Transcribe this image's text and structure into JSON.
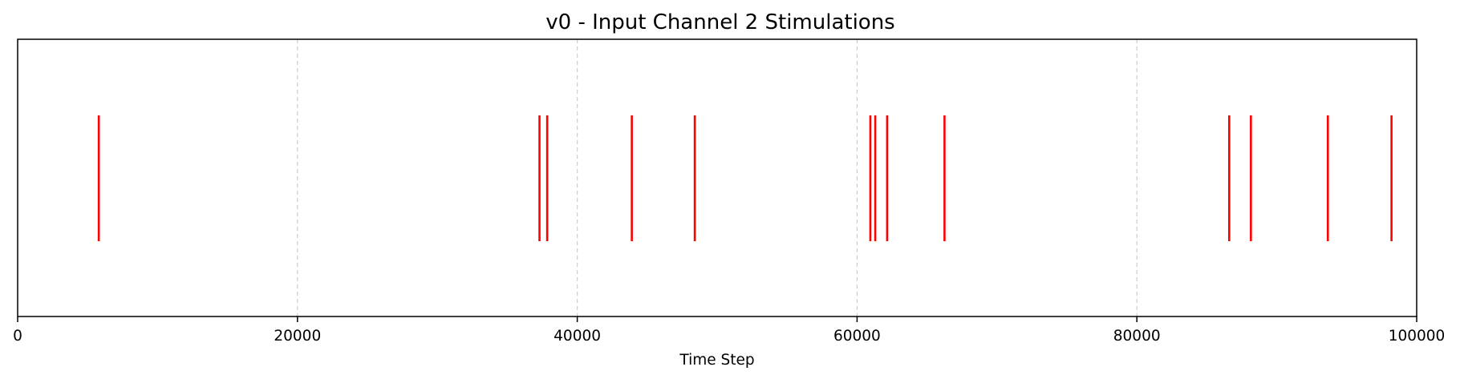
{
  "chart_data": {
    "type": "event",
    "title": "v0 - Input Channel 2 Stimulations",
    "xlabel": "Time Step",
    "ylabel": "",
    "xlim": [
      0,
      100000
    ],
    "xticks": [
      0,
      20000,
      40000,
      60000,
      80000,
      100000
    ],
    "xtick_labels": [
      "0",
      "20000",
      "40000",
      "60000",
      "80000",
      "100000"
    ],
    "grid": true,
    "grid_axis": "x",
    "grid_style": "dashed",
    "show_yticks": false,
    "series": [
      {
        "color": "#ff0000",
        "events": [
          5800,
          37300,
          37850,
          43900,
          48400,
          60950,
          61300,
          62150,
          66250,
          86600,
          88150,
          93650,
          98200
        ]
      }
    ]
  },
  "colors": {
    "event": "#ff0000",
    "grid": "#cccccc",
    "frame": "#000000"
  }
}
